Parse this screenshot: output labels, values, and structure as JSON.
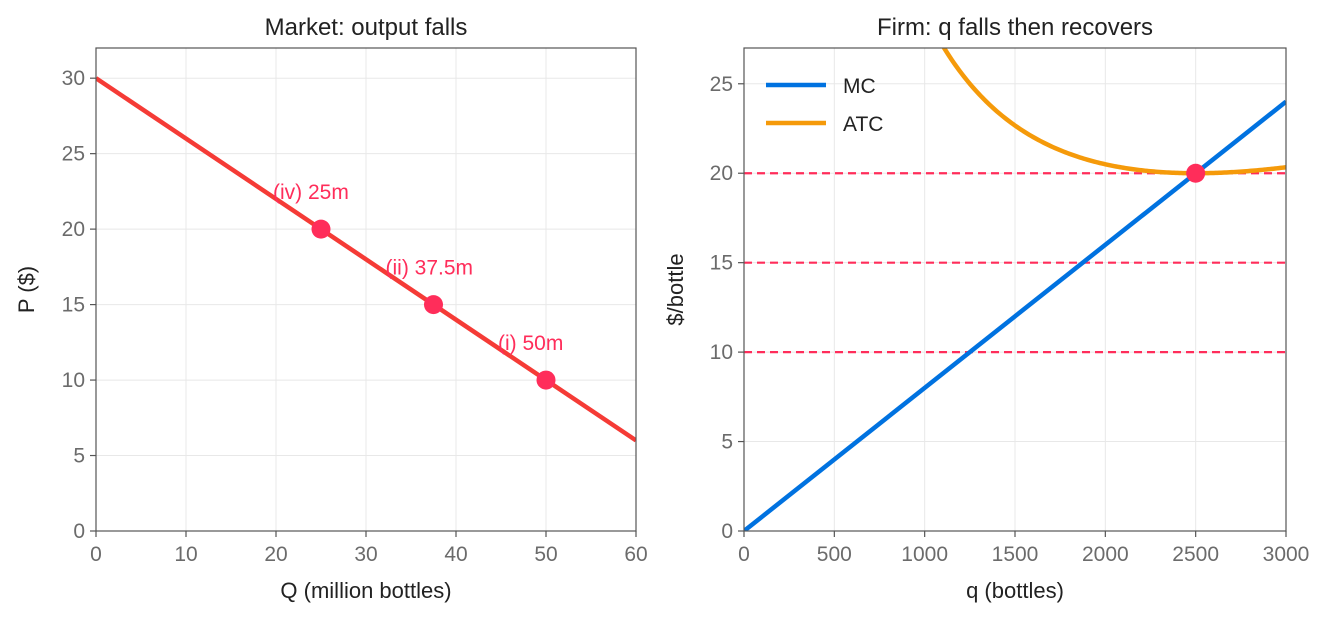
{
  "chart_data": [
    {
      "type": "line",
      "title": "Market: output falls",
      "xlabel": "Q (million bottles)",
      "ylabel": "P ($)",
      "xlim": [
        0,
        60
      ],
      "ylim": [
        0,
        32
      ],
      "xticks": [
        0,
        10,
        20,
        30,
        40,
        50,
        60
      ],
      "yticks": [
        0,
        5,
        10,
        15,
        20,
        25,
        30
      ],
      "grid": true,
      "series": [
        {
          "color": "#f53b36",
          "x": [
            0,
            60
          ],
          "y": [
            30,
            6
          ]
        }
      ],
      "points": [
        {
          "label": "(iv) 25m",
          "x": 25,
          "y": 20
        },
        {
          "label": "(ii) 37.5m",
          "x": 37.5,
          "y": 15
        },
        {
          "label": "(i) 50m",
          "x": 50,
          "y": 10
        }
      ],
      "point_color": "#ff2d5a"
    },
    {
      "type": "line",
      "title": "Firm: q falls then recovers",
      "xlabel": "q (bottles)",
      "ylabel": "$/bottle",
      "xlim": [
        0,
        3000
      ],
      "ylim": [
        0,
        27
      ],
      "xticks": [
        0,
        500,
        1000,
        1500,
        2000,
        2500,
        3000
      ],
      "yticks": [
        0,
        5,
        10,
        15,
        20,
        25
      ],
      "grid": true,
      "legend_position": "top-left",
      "series": [
        {
          "name": "MC",
          "color": "#0072e0",
          "function": "MC = 0.008 q",
          "x": [
            0,
            3000
          ],
          "y": [
            0,
            24
          ]
        },
        {
          "name": "ATC",
          "color": "#f59a0a",
          "function": "ATC = 0.004 q + 25000 / q",
          "x": [
            1000,
            1250,
            1500,
            2000,
            2500,
            3000
          ],
          "y": [
            29,
            25,
            22.67,
            20.5,
            20,
            20.33
          ]
        }
      ],
      "hlines": [
        {
          "y": 20,
          "color": "#ff2d5a"
        },
        {
          "y": 15,
          "color": "#ff2d5a"
        },
        {
          "y": 10,
          "color": "#ff2d5a"
        }
      ],
      "points": [
        {
          "x": 2500,
          "y": 20
        }
      ],
      "point_color": "#ff2d5a"
    }
  ]
}
